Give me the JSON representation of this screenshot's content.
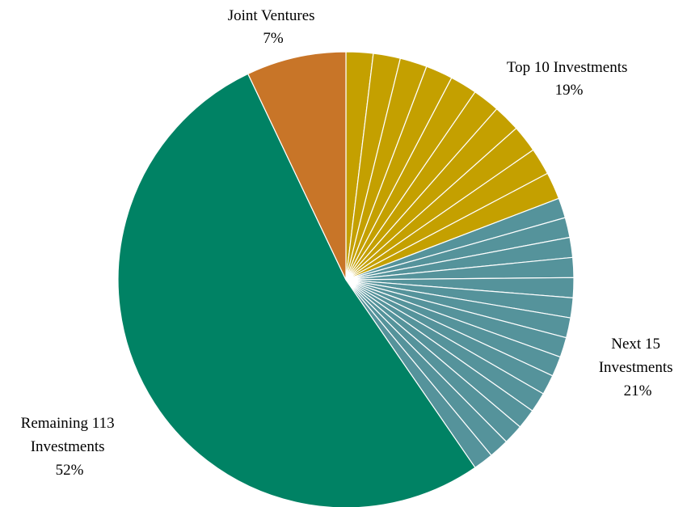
{
  "chart_data": {
    "type": "pie",
    "title": "",
    "start": "top",
    "direction": "clockwise",
    "slices": [
      {
        "group": "top10",
        "name": "Top 10 Investments",
        "value": 19,
        "count": 10,
        "color": "#C4A000"
      },
      {
        "group": "next15",
        "name": "Next 15 Investments",
        "value": 21,
        "count": 15,
        "color": "#55939B"
      },
      {
        "group": "remaining",
        "name": "Remaining 113 Investments",
        "value": 52,
        "count": 1,
        "color": "#008264"
      },
      {
        "group": "jv",
        "name": "Joint Ventures",
        "value": 7,
        "count": 1,
        "color": "#C87528"
      }
    ],
    "labels": {
      "top10": {
        "lines": [
          "Top 10 Investments"
        ],
        "pct": "19%"
      },
      "next15": {
        "lines": [
          "Next 15",
          "Investments"
        ],
        "pct": "21%"
      },
      "remaining": {
        "lines": [
          "Remaining 113",
          "Investments"
        ],
        "pct": "52%"
      },
      "jv": {
        "lines": [
          "Joint Ventures"
        ],
        "pct": "7%"
      }
    }
  }
}
